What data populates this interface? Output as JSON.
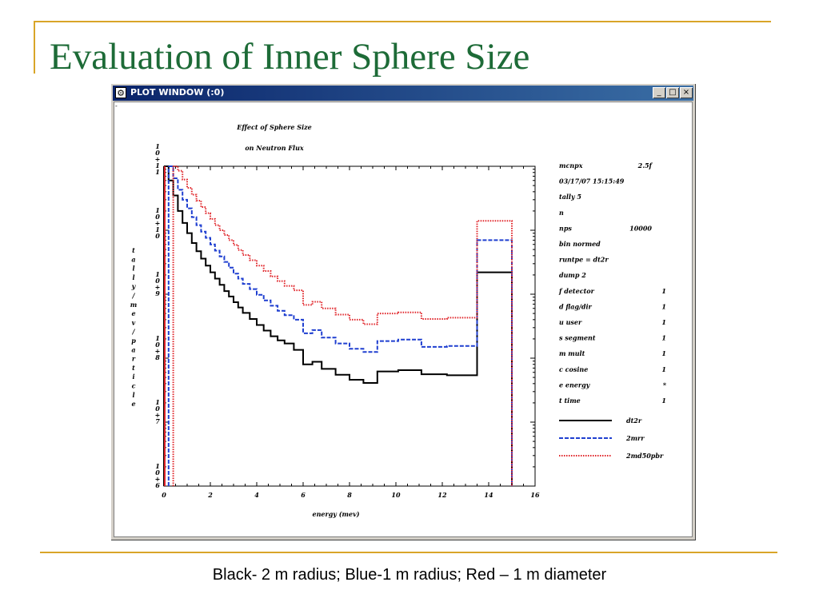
{
  "slide": {
    "title": "Evaluation of Inner Sphere Size",
    "caption": "Black- 2 m radius; Blue-1 m radius; Red – 1 m diameter"
  },
  "window": {
    "title": "PLOT WINDOW (:0)",
    "buttons": {
      "minimize": "_",
      "maximize": "□",
      "close": "×"
    }
  },
  "chart_data": {
    "type": "line",
    "step": true,
    "title": "Effect of Sphere Size",
    "subtitle": "on Neutron Flux",
    "xlabel": "energy (mev)",
    "ylabel": "tally/mev/particle",
    "xlim": [
      0,
      16
    ],
    "ylim": [
      1000000.0,
      100000000000.0
    ],
    "yscale": "log",
    "x_ticks": [
      "0",
      "2",
      "4",
      "6",
      "8",
      "10",
      "12",
      "14",
      "16"
    ],
    "y_ticks": [
      "10^11",
      "10^10",
      "10^9",
      "10^8",
      "10^7",
      "10^6"
    ],
    "series": [
      {
        "name": "dt2r",
        "color": "#000000",
        "style": "solid",
        "x": [
          0,
          0.2,
          0.4,
          0.6,
          0.8,
          1.0,
          1.2,
          1.4,
          1.6,
          1.8,
          2.0,
          2.2,
          2.4,
          2.6,
          2.8,
          3.0,
          3.2,
          3.4,
          3.7,
          4.0,
          4.3,
          4.6,
          4.9,
          5.2,
          5.6,
          6.0,
          6.4,
          6.8,
          7.4,
          8.0,
          8.6,
          9.2,
          10.1,
          11.1,
          12.2,
          13.5,
          15.0
        ],
        "y": [
          100000000000.0,
          60000000000.0,
          35000000000.0,
          20000000000.0,
          13000000000.0,
          9000000000.0,
          6300000000.0,
          4700000000.0,
          3600000000.0,
          2800000000.0,
          2200000000.0,
          1750000000.0,
          1400000000.0,
          1120000000.0,
          920000000.0,
          750000000.0,
          620000000.0,
          510000000.0,
          410000000.0,
          330000000.0,
          270000000.0,
          220000000.0,
          190000000.0,
          170000000.0,
          135000000.0,
          80000000.0,
          88000000.0,
          68000000.0,
          55000000.0,
          46000000.0,
          41000000.0,
          62000000.0,
          65000000.0,
          56000000.0,
          54000000.0,
          2200000000.0,
          1000000.0
        ]
      },
      {
        "name": "2mrr",
        "color": "#1f3fd0",
        "style": "dashed",
        "x": [
          0.2,
          0.4,
          0.6,
          0.8,
          1.0,
          1.2,
          1.4,
          1.6,
          1.8,
          2.0,
          2.2,
          2.4,
          2.6,
          2.8,
          3.0,
          3.2,
          3.4,
          3.7,
          4.0,
          4.3,
          4.6,
          4.9,
          5.2,
          5.6,
          6.0,
          6.4,
          6.8,
          7.4,
          8.0,
          8.6,
          9.2,
          10.1,
          11.1,
          12.2,
          13.5,
          15.0
        ],
        "y": [
          100000000000.0,
          65000000000.0,
          43000000000.0,
          30000000000.0,
          22000000000.0,
          16000000000.0,
          12000000000.0,
          9500000000.0,
          7600000000.0,
          6000000000.0,
          4800000000.0,
          3900000000.0,
          3200000000.0,
          2600000000.0,
          2100000000.0,
          1750000000.0,
          1450000000.0,
          1200000000.0,
          980000000.0,
          800000000.0,
          660000000.0,
          550000000.0,
          470000000.0,
          400000000.0,
          245000000.0,
          275000000.0,
          210000000.0,
          170000000.0,
          140000000.0,
          125000000.0,
          185000000.0,
          195000000.0,
          150000000.0,
          155000000.0,
          7000000000.0,
          1000000.0
        ]
      },
      {
        "name": "2md50pbr",
        "color": "#e0252a",
        "style": "dotted",
        "x": [
          0.4,
          0.6,
          0.8,
          1.0,
          1.2,
          1.4,
          1.6,
          1.8,
          2.0,
          2.2,
          2.4,
          2.6,
          2.8,
          3.0,
          3.2,
          3.4,
          3.7,
          4.0,
          4.3,
          4.6,
          4.9,
          5.2,
          5.6,
          6.0,
          6.4,
          6.8,
          7.4,
          8.0,
          8.6,
          9.2,
          10.1,
          11.1,
          12.2,
          13.5,
          15.0
        ],
        "y": [
          100000000000.0,
          85000000000.0,
          62000000000.0,
          46000000000.0,
          36000000000.0,
          29000000000.0,
          23000000000.0,
          18500000000.0,
          15000000000.0,
          12000000000.0,
          10000000000.0,
          8400000000.0,
          7000000000.0,
          5900000000.0,
          4900000000.0,
          4100000000.0,
          3400000000.0,
          2800000000.0,
          2300000000.0,
          1900000000.0,
          1600000000.0,
          1350000000.0,
          1150000000.0,
          680000000.0,
          760000000.0,
          600000000.0,
          480000000.0,
          400000000.0,
          340000000.0,
          500000000.0,
          520000000.0,
          410000000.0,
          430000000.0,
          14000000000.0,
          1000000.0
        ]
      }
    ],
    "info_panel": [
      [
        "mcnpx",
        "2.5f"
      ],
      [
        "03/17/07 15:15:49",
        ""
      ],
      [
        "tally        5",
        ""
      ],
      [
        "n",
        ""
      ],
      [
        "nps",
        "10000"
      ],
      [
        "bin normed",
        ""
      ],
      [
        "runtpe = dt2r",
        ""
      ],
      [
        "dump    2",
        ""
      ],
      [
        "f     detector",
        "1"
      ],
      [
        "d    flag/dir",
        "1"
      ],
      [
        "u          user",
        "1"
      ],
      [
        "s     segment",
        "1"
      ],
      [
        "m          mult",
        "1"
      ],
      [
        "c        cosine",
        "1"
      ],
      [
        "e        energy",
        "*"
      ],
      [
        "t          time",
        "1"
      ]
    ]
  }
}
